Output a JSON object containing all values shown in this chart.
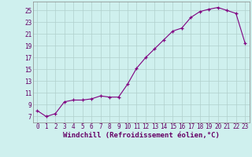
{
  "x": [
    0,
    1,
    2,
    3,
    4,
    5,
    6,
    7,
    8,
    9,
    10,
    11,
    12,
    13,
    14,
    15,
    16,
    17,
    18,
    19,
    20,
    21,
    22,
    23
  ],
  "y": [
    8.0,
    7.0,
    7.5,
    9.5,
    9.8,
    9.8,
    10.0,
    10.5,
    10.3,
    10.3,
    12.5,
    15.2,
    17.0,
    18.5,
    20.0,
    21.5,
    22.0,
    23.8,
    24.8,
    25.2,
    25.5,
    25.0,
    24.5,
    19.5
  ],
  "line_color": "#800080",
  "marker": "+",
  "marker_color": "#800080",
  "bg_color": "#cff0ee",
  "grid_color": "#b0d0cc",
  "xlabel": "Windchill (Refroidissement éolien,°C)",
  "xlim_min": -0.5,
  "xlim_max": 23.5,
  "ylim_min": 6.0,
  "ylim_max": 26.5,
  "yticks": [
    7,
    9,
    11,
    13,
    15,
    17,
    19,
    21,
    23,
    25
  ],
  "tick_fontsize": 5.5,
  "xlabel_fontsize": 6.5
}
